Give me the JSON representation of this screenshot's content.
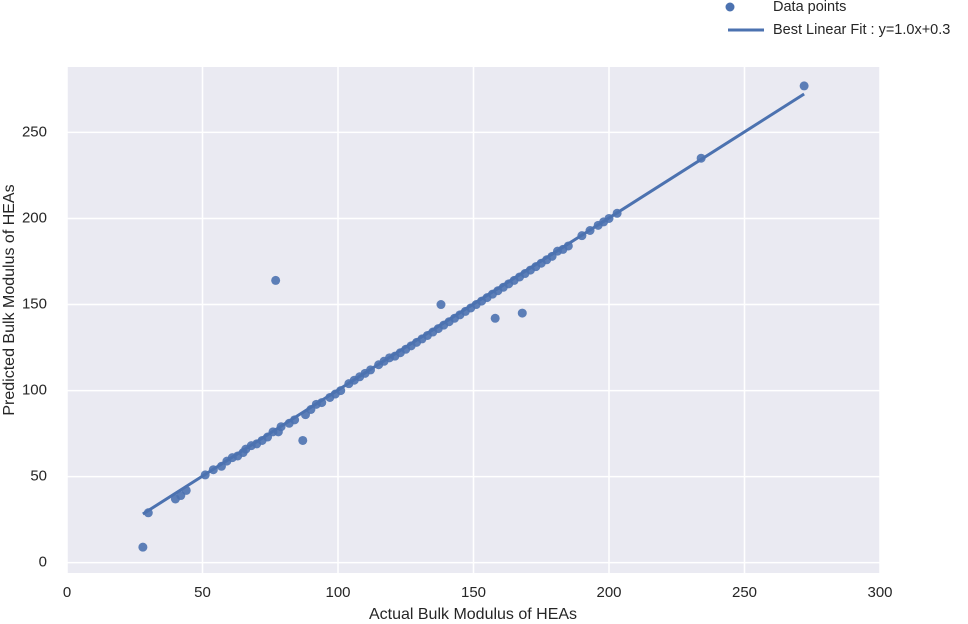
{
  "chart_data": {
    "type": "scatter",
    "x_label": "Actual Bulk Modulus of HEAs",
    "y_label": "Predicted Bulk Modulus of HEAs",
    "xlim": [
      0,
      300
    ],
    "ylim": [
      -6,
      288
    ],
    "xticks": [
      0,
      50,
      100,
      150,
      200,
      250,
      300
    ],
    "yticks": [
      0,
      50,
      100,
      150,
      200,
      250
    ],
    "grid": true,
    "legend": "upper right",
    "series": [
      {
        "name": "Data points",
        "type": "scatter",
        "color": "#4c72b0",
        "x": [
          28,
          30,
          40,
          42,
          44,
          51,
          54,
          57,
          59,
          61,
          63,
          65,
          66,
          68,
          70,
          72,
          74,
          76,
          77,
          78,
          79,
          82,
          84,
          87,
          88,
          90,
          92,
          94,
          97,
          99,
          101,
          104,
          106,
          108,
          110,
          112,
          115,
          117,
          119,
          121,
          123,
          125,
          127,
          129,
          131,
          133,
          135,
          137,
          138,
          139,
          141,
          143,
          145,
          147,
          149,
          151,
          153,
          155,
          157,
          158,
          159,
          161,
          163,
          165,
          167,
          168,
          169,
          171,
          173,
          175,
          177,
          179,
          181,
          183,
          185,
          190,
          193,
          196,
          198,
          200,
          203,
          234,
          272
        ],
        "values": [
          9,
          29,
          37,
          39,
          42,
          51,
          54,
          56,
          59,
          61,
          62,
          64,
          66,
          68,
          69,
          71,
          73,
          76,
          164,
          76,
          79,
          81,
          83,
          71,
          86,
          89,
          92,
          93,
          96,
          98,
          100,
          104,
          106,
          108,
          110,
          112,
          115,
          117,
          119,
          120,
          122,
          124,
          126,
          128,
          130,
          132,
          134,
          136,
          150,
          138,
          140,
          142,
          144,
          146,
          148,
          150,
          152,
          154,
          156,
          142,
          158,
          160,
          162,
          164,
          166,
          145,
          168,
          170,
          172,
          174,
          176,
          178,
          181,
          182,
          184,
          190,
          193,
          196,
          198,
          200,
          203,
          235,
          277
        ]
      },
      {
        "name": "Best Linear Fit : y=1.0x+0.3",
        "type": "line",
        "color": "#4c72b0",
        "x": [
          28,
          272
        ],
        "values": [
          28.3,
          272.3
        ]
      }
    ]
  }
}
